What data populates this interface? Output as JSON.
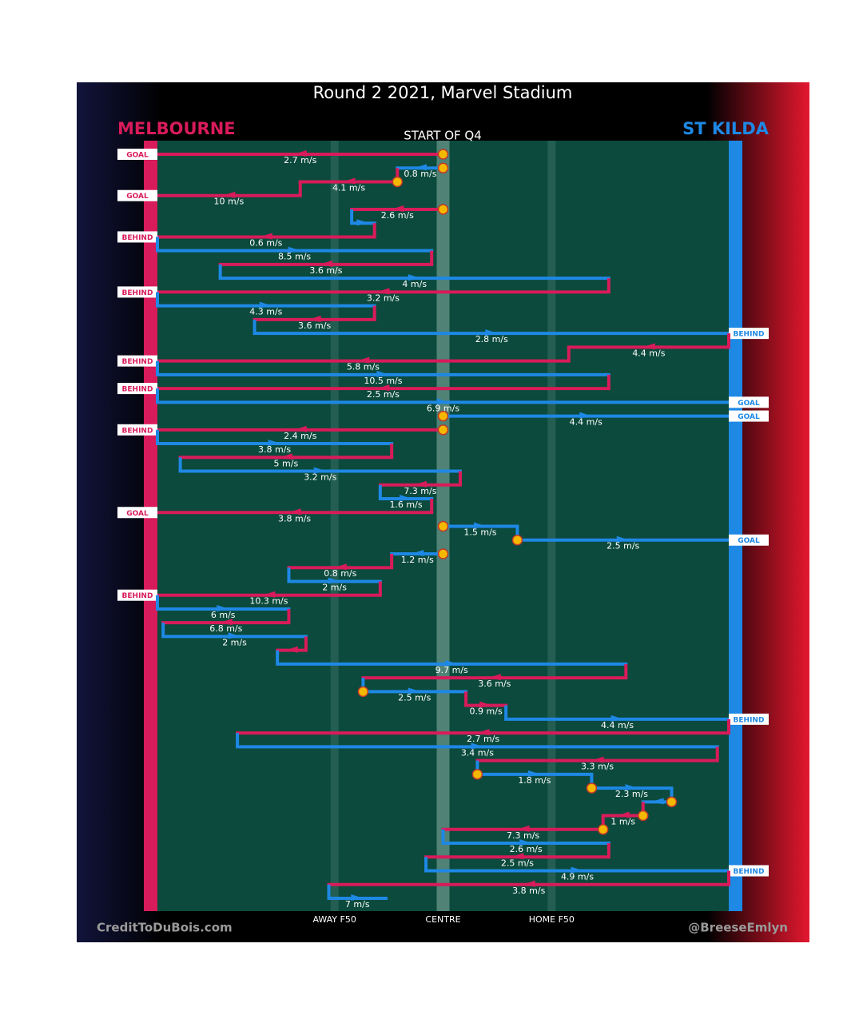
{
  "chart_data": {
    "type": "possession-chains",
    "title": "Round 2 2021, Marvel Stadium",
    "subtitle": "START OF Q4",
    "teams": [
      {
        "name": "MELBOURNE",
        "color": "#d81b5a"
      },
      {
        "name": "ST KILDA",
        "color": "#1e88e5"
      }
    ],
    "credits": [
      "CreditToDuBois.com",
      "@BreeseEmlyn"
    ],
    "xlim": [
      0,
      100
    ],
    "xticks": [
      {
        "value": 31,
        "label": "AWAY F50"
      },
      {
        "value": 50,
        "label": "CENTRE"
      },
      {
        "value": 69,
        "label": "HOME F50"
      }
    ],
    "rows": [
      {
        "team": 0,
        "from": 50,
        "to": 0,
        "speed": 2.7,
        "value_label": "2.7 m/s",
        "outcome": "GOAL",
        "bounce": true
      },
      {
        "team": 1,
        "from": 50,
        "to": 42,
        "speed": 0.8,
        "value_label": "0.8 m/s",
        "outcome": null,
        "bounce": true
      },
      {
        "team": 0,
        "from": 42,
        "to": 25,
        "speed": 4.1,
        "value_label": "4.1 m/s",
        "outcome": null,
        "bounce": true
      },
      {
        "team": 0,
        "from": 25,
        "to": 0,
        "speed": 10,
        "value_label": "10 m/s",
        "outcome": "GOAL",
        "bounce": false
      },
      {
        "team": 0,
        "from": 50,
        "to": 34,
        "speed": 2.6,
        "value_label": "2.6 m/s",
        "outcome": null,
        "bounce": true
      },
      {
        "team": 1,
        "from": 34,
        "to": 38,
        "speed": null,
        "value_label": null,
        "outcome": null,
        "bounce": false
      },
      {
        "team": 0,
        "from": 38,
        "to": 0,
        "speed": 0.6,
        "value_label": "0.6 m/s",
        "outcome": "BEHIND",
        "bounce": false
      },
      {
        "team": 1,
        "from": 0,
        "to": 48,
        "speed": 8.5,
        "value_label": "8.5 m/s",
        "outcome": null,
        "bounce": false
      },
      {
        "team": 0,
        "from": 48,
        "to": 11,
        "speed": 3.6,
        "value_label": "3.6 m/s",
        "outcome": null,
        "bounce": false
      },
      {
        "team": 1,
        "from": 11,
        "to": 79,
        "speed": 4,
        "value_label": "4 m/s",
        "outcome": null,
        "bounce": false
      },
      {
        "team": 0,
        "from": 79,
        "to": 0,
        "speed": 3.2,
        "value_label": "3.2 m/s",
        "outcome": "BEHIND",
        "bounce": false
      },
      {
        "team": 1,
        "from": 0,
        "to": 38,
        "speed": 4.3,
        "value_label": "4.3 m/s",
        "outcome": null,
        "bounce": false
      },
      {
        "team": 0,
        "from": 38,
        "to": 17,
        "speed": 3.6,
        "value_label": "3.6 m/s",
        "outcome": null,
        "bounce": false
      },
      {
        "team": 1,
        "from": 17,
        "to": 100,
        "speed": 2.8,
        "value_label": "2.8 m/s",
        "outcome": "BEHIND",
        "bounce": false
      },
      {
        "team": 0,
        "from": 100,
        "to": 72,
        "speed": 4.4,
        "value_label": "4.4 m/s",
        "outcome": null,
        "bounce": false
      },
      {
        "team": 0,
        "from": 72,
        "to": 0,
        "speed": 5.8,
        "value_label": "5.8 m/s",
        "outcome": "BEHIND",
        "bounce": false
      },
      {
        "team": 1,
        "from": 0,
        "to": 79,
        "speed": 10.5,
        "value_label": "10.5 m/s",
        "outcome": null,
        "bounce": false
      },
      {
        "team": 0,
        "from": 79,
        "to": 0,
        "speed": 2.5,
        "value_label": "2.5 m/s",
        "outcome": "BEHIND",
        "bounce": false
      },
      {
        "team": 1,
        "from": 0,
        "to": 100,
        "speed": 6.9,
        "value_label": "6.9 m/s",
        "outcome": "GOAL",
        "bounce": false
      },
      {
        "team": 1,
        "from": 50,
        "to": 100,
        "speed": 4.4,
        "value_label": "4.4 m/s",
        "outcome": "GOAL",
        "bounce": true
      },
      {
        "team": 0,
        "from": 50,
        "to": 0,
        "speed": 2.4,
        "value_label": "2.4 m/s",
        "outcome": "BEHIND",
        "bounce": true
      },
      {
        "team": 1,
        "from": 0,
        "to": 41,
        "speed": 3.8,
        "value_label": "3.8 m/s",
        "outcome": null,
        "bounce": false
      },
      {
        "team": 0,
        "from": 41,
        "to": 4,
        "speed": 5,
        "value_label": "5 m/s",
        "outcome": null,
        "bounce": false
      },
      {
        "team": 1,
        "from": 4,
        "to": 53,
        "speed": 3.2,
        "value_label": "3.2 m/s",
        "outcome": null,
        "bounce": false
      },
      {
        "team": 0,
        "from": 53,
        "to": 39,
        "speed": 7.3,
        "value_label": "7.3 m/s",
        "outcome": null,
        "bounce": false
      },
      {
        "team": 1,
        "from": 39,
        "to": 48,
        "speed": 1.6,
        "value_label": "1.6 m/s",
        "outcome": null,
        "bounce": false
      },
      {
        "team": 0,
        "from": 48,
        "to": 0,
        "speed": 3.8,
        "value_label": "3.8 m/s",
        "outcome": "GOAL",
        "bounce": false
      },
      {
        "team": 1,
        "from": 50,
        "to": 63,
        "speed": 1.5,
        "value_label": "1.5 m/s",
        "outcome": null,
        "bounce": true
      },
      {
        "team": 1,
        "from": 63,
        "to": 100,
        "speed": 2.5,
        "value_label": "2.5 m/s",
        "outcome": "GOAL",
        "bounce": true
      },
      {
        "team": 1,
        "from": 50,
        "to": 41,
        "speed": 1.2,
        "value_label": "1.2 m/s",
        "outcome": null,
        "bounce": true
      },
      {
        "team": 0,
        "from": 41,
        "to": 23,
        "speed": 0.8,
        "value_label": "0.8 m/s",
        "outcome": null,
        "bounce": false
      },
      {
        "team": 1,
        "from": 23,
        "to": 39,
        "speed": 2,
        "value_label": "2 m/s",
        "outcome": null,
        "bounce": false
      },
      {
        "team": 0,
        "from": 39,
        "to": 0,
        "speed": 10.3,
        "value_label": "10.3 m/s",
        "outcome": "BEHIND",
        "bounce": false
      },
      {
        "team": 1,
        "from": 0,
        "to": 23,
        "speed": 6,
        "value_label": "6 m/s",
        "outcome": null,
        "bounce": false
      },
      {
        "team": 0,
        "from": 23,
        "to": 1,
        "speed": 6.8,
        "value_label": "6.8 m/s",
        "outcome": null,
        "bounce": false
      },
      {
        "team": 1,
        "from": 1,
        "to": 26,
        "speed": 2,
        "value_label": "2 m/s",
        "outcome": null,
        "bounce": false
      },
      {
        "team": 0,
        "from": 26,
        "to": 21,
        "speed": null,
        "value_label": null,
        "outcome": null,
        "bounce": false
      },
      {
        "team": 1,
        "from": 21,
        "to": 82,
        "speed": 9.7,
        "value_label": "9.7 m/s",
        "outcome": null,
        "bounce": false
      },
      {
        "team": 0,
        "from": 82,
        "to": 36,
        "speed": 3.6,
        "value_label": "3.6 m/s",
        "outcome": null,
        "bounce": false
      },
      {
        "team": 1,
        "from": 36,
        "to": 54,
        "speed": 2.5,
        "value_label": "2.5 m/s",
        "outcome": null,
        "bounce": true
      },
      {
        "team": 0,
        "from": 54,
        "to": 61,
        "speed": 0.9,
        "value_label": "0.9 m/s",
        "outcome": null,
        "bounce": false
      },
      {
        "team": 1,
        "from": 61,
        "to": 100,
        "speed": 4.4,
        "value_label": "4.4 m/s",
        "outcome": "BEHIND",
        "bounce": false
      },
      {
        "team": 0,
        "from": 100,
        "to": 14,
        "speed": 2.7,
        "value_label": "2.7 m/s",
        "outcome": null,
        "bounce": false
      },
      {
        "team": 1,
        "from": 14,
        "to": 98,
        "speed": 3.4,
        "value_label": "3.4 m/s",
        "outcome": null,
        "bounce": false
      },
      {
        "team": 0,
        "from": 98,
        "to": 56,
        "speed": 3.3,
        "value_label": "3.3 m/s",
        "outcome": null,
        "bounce": false
      },
      {
        "team": 1,
        "from": 56,
        "to": 76,
        "speed": 1.8,
        "value_label": "1.8 m/s",
        "outcome": null,
        "bounce": true
      },
      {
        "team": 1,
        "from": 76,
        "to": 90,
        "speed": 2.3,
        "value_label": "2.3 m/s",
        "outcome": null,
        "bounce": true
      },
      {
        "team": 1,
        "from": 90,
        "to": 85,
        "speed": null,
        "value_label": null,
        "outcome": null,
        "bounce": true
      },
      {
        "team": 0,
        "from": 85,
        "to": 78,
        "speed": 1,
        "value_label": "1 m/s",
        "outcome": null,
        "bounce": true
      },
      {
        "team": 0,
        "from": 78,
        "to": 50,
        "speed": 7.3,
        "value_label": "7.3 m/s",
        "outcome": null,
        "bounce": true
      },
      {
        "team": 1,
        "from": 50,
        "to": 79,
        "speed": 2.6,
        "value_label": "2.6 m/s",
        "outcome": null,
        "bounce": false
      },
      {
        "team": 0,
        "from": 79,
        "to": 47,
        "speed": 2.5,
        "value_label": "2.5 m/s",
        "outcome": null,
        "bounce": false
      },
      {
        "team": 1,
        "from": 47,
        "to": 100,
        "speed": 4.9,
        "value_label": "4.9 m/s",
        "outcome": "BEHIND",
        "bounce": false
      },
      {
        "team": 0,
        "from": 100,
        "to": 30,
        "speed": 3.8,
        "value_label": "3.8 m/s",
        "outcome": null,
        "bounce": false
      },
      {
        "team": 1,
        "from": 30,
        "to": 40,
        "speed": 7,
        "value_label": "7 m/s",
        "outcome": null,
        "bounce": false
      }
    ]
  }
}
